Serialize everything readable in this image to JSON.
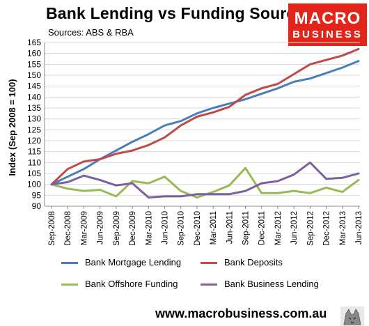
{
  "title": "Bank Lending vs Funding Sources",
  "subtitle": "Sources: ABS & RBA",
  "logo": {
    "line1": "MACRO",
    "line2": "BUSINESS",
    "color": "#e1251b"
  },
  "footer_url": "www.macrobusiness.com.au",
  "chart_data": {
    "type": "line",
    "ylabel": "Index (Sep 2008 = 100)",
    "xlabel": "",
    "ylim": [
      90,
      165
    ],
    "yticks": [
      90,
      95,
      100,
      105,
      110,
      115,
      120,
      125,
      130,
      135,
      140,
      145,
      150,
      155,
      160,
      165
    ],
    "grid": "horizontal",
    "legend_placement": "bottom",
    "x": [
      "Sep-2008",
      "Dec-2008",
      "Mar-2009",
      "Jun-2009",
      "Sep-2009",
      "Dec-2009",
      "Mar-2010",
      "Jun-2010",
      "Sep-2010",
      "Dec-2010",
      "Mar-2011",
      "Jun-2011",
      "Sep-2011",
      "Dec-2011",
      "Mar-2012",
      "Jun-2012",
      "Sep-2012",
      "Dec-2012",
      "Mar-2013",
      "Jun-2013"
    ],
    "series": [
      {
        "name": "Bank Mortgage Lending",
        "color": "#4a7ebb",
        "values": [
          100,
          103.5,
          107,
          111.5,
          115.5,
          119.5,
          123,
          127,
          129,
          132.5,
          135,
          137,
          139,
          141.5,
          144,
          147,
          148.5,
          151,
          153.5,
          156.5
        ]
      },
      {
        "name": "Bank Deposits",
        "color": "#be4b48",
        "values": [
          100,
          107,
          110.5,
          111.5,
          114,
          115.5,
          118,
          121.5,
          127,
          131,
          133,
          135.5,
          141,
          144,
          146,
          150.5,
          155,
          157,
          159,
          162
        ]
      },
      {
        "name": "Bank Offshore Funding",
        "color": "#98b954",
        "values": [
          100,
          98,
          97,
          97.5,
          94.5,
          101.5,
          100.5,
          103.5,
          97,
          94,
          96.5,
          99.5,
          107.5,
          96,
          96,
          97,
          96,
          98.5,
          96.5,
          102
        ]
      },
      {
        "name": "Bank Business Lending",
        "color": "#7d60a0",
        "values": [
          100,
          101,
          104,
          102,
          99.5,
          100.5,
          94,
          94.5,
          94.5,
          95.5,
          95.5,
          95.5,
          97,
          100.5,
          101.5,
          104.5,
          110,
          102.5,
          103,
          105
        ]
      }
    ]
  }
}
